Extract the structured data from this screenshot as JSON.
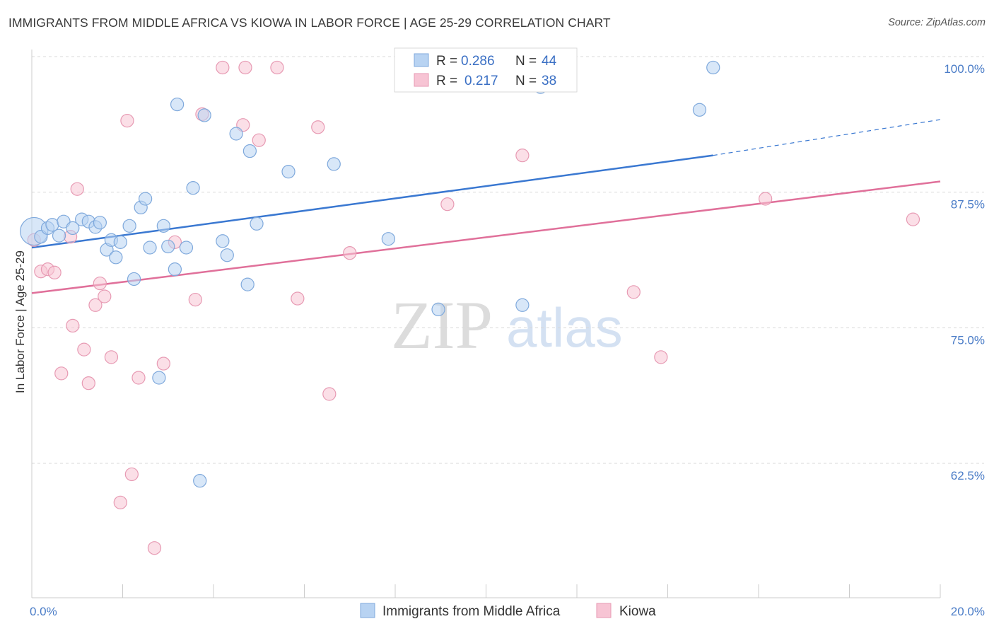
{
  "title": "IMMIGRANTS FROM MIDDLE AFRICA VS KIOWA IN LABOR FORCE | AGE 25-29 CORRELATION CHART",
  "source": "Source: ZipAtlas.com",
  "watermark": {
    "zip": "ZIP",
    "atlas": "atlas"
  },
  "colors": {
    "blue_fill": "#b8d3f2",
    "blue_stroke": "#7fa9dc",
    "blue_line": "#3a78d1",
    "pink_fill": "#f7c4d4",
    "pink_stroke": "#e79ab3",
    "pink_line": "#e0709a",
    "tick_text": "#4a7cc7",
    "grid": "#d8d8d8"
  },
  "legend": {
    "rows": [
      {
        "r_label": "R =",
        "r_value": "0.286",
        "n_label": "N =",
        "n_value": "44"
      },
      {
        "r_label": "R =",
        "r_value": "0.217",
        "n_label": "N =",
        "n_value": "38"
      }
    ]
  },
  "chart_data": {
    "type": "scatter",
    "ylabel": "In Labor Force | Age 25-29",
    "xlabel": "",
    "xlim": [
      0,
      20
    ],
    "ylim": [
      50,
      102.5
    ],
    "x_tick_labels": [
      {
        "x": 0,
        "label": "0.0%"
      },
      {
        "x": 20,
        "label": "20.0%"
      }
    ],
    "y_tick_labels": [
      {
        "y": 100,
        "label": "100.0%"
      },
      {
        "y": 87.5,
        "label": "87.5%"
      },
      {
        "y": 75,
        "label": "75.0%"
      },
      {
        "y": 62.5,
        "label": "62.5%"
      }
    ],
    "legend_position": "top-center",
    "grid": true,
    "series": [
      {
        "name": "Immigrants from Middle Africa",
        "trend": {
          "x0": 0,
          "y0": 83.5,
          "x1": 15,
          "y1": 92.0,
          "dash_to_x": 20,
          "dash_to_y": 95.3
        },
        "points": [
          [
            0.05,
            85.0,
            26
          ],
          [
            0.2,
            84.5,
            12
          ],
          [
            0.35,
            85.3,
            12
          ],
          [
            0.45,
            85.6,
            12
          ],
          [
            0.6,
            84.6,
            12
          ],
          [
            0.7,
            85.9,
            12
          ],
          [
            0.9,
            85.3,
            12
          ],
          [
            1.1,
            86.1,
            12
          ],
          [
            1.25,
            85.9,
            12
          ],
          [
            1.4,
            85.4,
            12
          ],
          [
            1.5,
            85.8,
            12
          ],
          [
            1.65,
            83.3,
            12
          ],
          [
            1.75,
            84.2,
            12
          ],
          [
            1.85,
            82.6,
            12
          ],
          [
            1.95,
            84.0,
            12
          ],
          [
            2.15,
            85.5,
            12
          ],
          [
            2.25,
            80.6,
            12
          ],
          [
            2.4,
            87.2,
            12
          ],
          [
            2.5,
            88.0,
            12
          ],
          [
            2.6,
            83.5,
            12
          ],
          [
            2.8,
            71.5,
            12
          ],
          [
            2.9,
            85.5,
            12
          ],
          [
            3.0,
            83.6,
            12
          ],
          [
            3.15,
            81.5,
            12
          ],
          [
            3.2,
            96.7,
            12
          ],
          [
            3.4,
            83.5,
            12
          ],
          [
            3.55,
            89.0,
            12
          ],
          [
            3.7,
            62.0,
            12
          ],
          [
            3.8,
            95.7,
            12
          ],
          [
            4.2,
            84.1,
            12
          ],
          [
            4.3,
            82.8,
            12
          ],
          [
            4.5,
            94.0,
            12
          ],
          [
            4.75,
            80.1,
            12
          ],
          [
            4.8,
            92.4,
            12
          ],
          [
            4.95,
            85.7,
            12
          ],
          [
            5.65,
            90.5,
            12
          ],
          [
            6.65,
            91.2,
            12
          ],
          [
            7.85,
            84.3,
            12
          ],
          [
            8.9,
            100.1,
            12
          ],
          [
            8.95,
            77.8,
            12
          ],
          [
            10.8,
            78.2,
            12
          ],
          [
            11.2,
            98.3,
            12
          ],
          [
            14.7,
            96.2,
            12
          ],
          [
            15.0,
            100.1,
            12
          ]
        ]
      },
      {
        "name": "Kiowa",
        "trend": {
          "x0": 0,
          "y0": 79.3,
          "x1": 20,
          "y1": 89.6
        },
        "points": [
          [
            0.05,
            84.2,
            12
          ],
          [
            0.2,
            81.3,
            12
          ],
          [
            0.35,
            81.5,
            12
          ],
          [
            0.5,
            81.2,
            12
          ],
          [
            0.65,
            71.9,
            12
          ],
          [
            0.85,
            84.5,
            12
          ],
          [
            0.9,
            76.3,
            12
          ],
          [
            1.0,
            88.9,
            12
          ],
          [
            1.15,
            74.1,
            12
          ],
          [
            1.25,
            71.0,
            12
          ],
          [
            1.4,
            78.2,
            12
          ],
          [
            1.5,
            80.2,
            12
          ],
          [
            1.6,
            79.0,
            12
          ],
          [
            1.75,
            73.4,
            12
          ],
          [
            1.95,
            60.0,
            12
          ],
          [
            2.1,
            95.2,
            12
          ],
          [
            2.2,
            62.6,
            12
          ],
          [
            2.35,
            71.5,
            12
          ],
          [
            2.7,
            55.8,
            12
          ],
          [
            2.9,
            72.8,
            12
          ],
          [
            3.15,
            84.0,
            12
          ],
          [
            3.6,
            78.7,
            12
          ],
          [
            3.75,
            95.8,
            12
          ],
          [
            4.2,
            100.1,
            12
          ],
          [
            4.65,
            94.8,
            12
          ],
          [
            4.7,
            100.1,
            12
          ],
          [
            5.0,
            93.4,
            12
          ],
          [
            5.4,
            100.1,
            12
          ],
          [
            5.85,
            78.8,
            12
          ],
          [
            6.3,
            94.6,
            12
          ],
          [
            6.55,
            70.0,
            12
          ],
          [
            7.0,
            83.0,
            12
          ],
          [
            9.15,
            87.5,
            12
          ],
          [
            10.8,
            92.0,
            12
          ],
          [
            13.25,
            79.4,
            12
          ],
          [
            13.85,
            73.4,
            12
          ],
          [
            16.15,
            88.0,
            12
          ],
          [
            19.4,
            86.1,
            12
          ]
        ]
      }
    ]
  }
}
